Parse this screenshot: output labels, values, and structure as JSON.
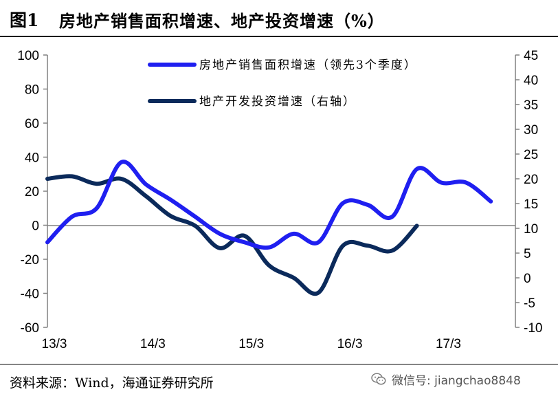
{
  "header": {
    "figure_label": "图1",
    "title": "房地产销售面积增速、地产投资增速（%）"
  },
  "footer": {
    "source": "资料来源：Wind，海通证券研究所",
    "watermark": "微信号: jiangchao8848",
    "watermark_icon": "wechat-icon"
  },
  "colors": {
    "sales": "#1f1ff0",
    "investment": "#0b2a5b",
    "axis": "#808080"
  },
  "chart_data": {
    "type": "line",
    "x_tick_labels": [
      "13/3",
      "14/3",
      "15/3",
      "16/3",
      "17/3"
    ],
    "y_left": {
      "min": -60,
      "max": 100,
      "ticks": [
        "100",
        "80",
        "60",
        "40",
        "20",
        "0",
        "-20",
        "-40",
        "-60"
      ]
    },
    "y_right": {
      "min": -10,
      "max": 45,
      "ticks": [
        "45",
        "40",
        "35",
        "30",
        "25",
        "20",
        "15",
        "10",
        "5",
        "0",
        "-5",
        "-10"
      ]
    },
    "series": [
      {
        "name": "房地产销售面积增速（领先3个季度）",
        "axis": "left",
        "x": [
          2013.0,
          2013.25,
          2013.5,
          2013.75,
          2014.0,
          2014.25,
          2014.5,
          2014.75,
          2015.0,
          2015.25,
          2015.5,
          2015.75,
          2016.0,
          2016.25,
          2016.5,
          2016.75,
          2017.0,
          2017.25,
          2017.5
        ],
        "values": [
          -10,
          5,
          10,
          37,
          24,
          15,
          5,
          -5,
          -10,
          -13,
          -5,
          -10,
          13,
          12,
          5,
          33,
          25,
          25,
          14
        ]
      },
      {
        "name": "地产开发投资增速（右轴）",
        "axis": "right",
        "x": [
          2013.0,
          2013.25,
          2013.5,
          2013.75,
          2014.0,
          2014.25,
          2014.5,
          2014.75,
          2015.0,
          2015.25,
          2015.5,
          2015.75,
          2016.0,
          2016.25,
          2016.5,
          2016.75
        ],
        "values": [
          20,
          20.5,
          19,
          20,
          16.5,
          12.5,
          10.5,
          6,
          8.5,
          2.5,
          0,
          -3,
          6.5,
          6.5,
          5.5,
          10.5
        ]
      }
    ]
  }
}
